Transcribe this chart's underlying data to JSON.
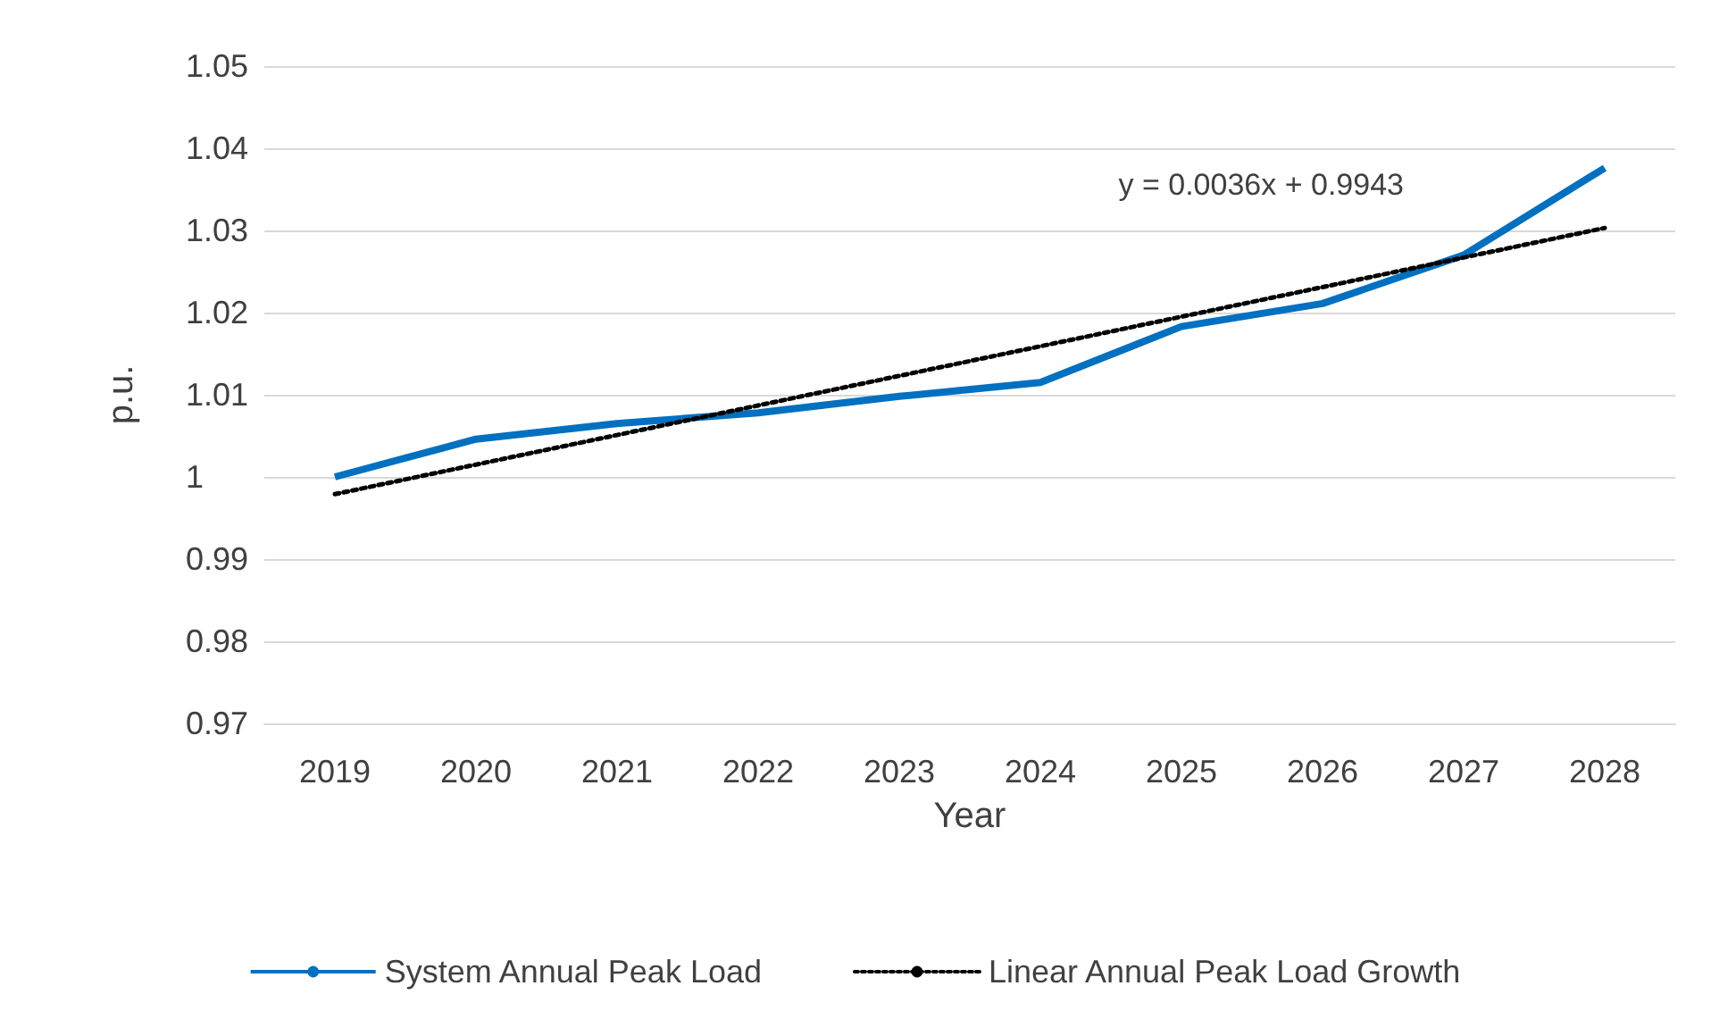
{
  "chart_data": {
    "type": "line",
    "xlabel": "Year",
    "ylabel": "p.u.",
    "categories": [
      "2019",
      "2020",
      "2021",
      "2022",
      "2023",
      "2024",
      "2025",
      "2026",
      "2027",
      "2028"
    ],
    "series": [
      {
        "name": "System Annual Peak Load",
        "color": "#0070c0",
        "line_style": "solid",
        "values": [
          1.0,
          1.0046,
          1.0065,
          1.0078,
          1.0098,
          1.0115,
          1.0183,
          1.0211,
          1.027,
          1.0376
        ]
      },
      {
        "name": "Linear Annual Peak Load Growth",
        "color": "#000000",
        "line_style": "dotted",
        "values": [
          0.9979,
          1.0015,
          1.0051,
          1.0087,
          1.0123,
          1.0159,
          1.0195,
          1.0231,
          1.0267,
          1.0303
        ]
      }
    ],
    "annotations": [
      "y = 0.0036x + 0.9943"
    ],
    "ylim": [
      0.97,
      1.05
    ],
    "yticks": [
      0.97,
      0.98,
      0.99,
      1,
      1.01,
      1.02,
      1.03,
      1.04,
      1.05
    ],
    "grid": "y",
    "legend": "bottom",
    "marker": "none"
  }
}
